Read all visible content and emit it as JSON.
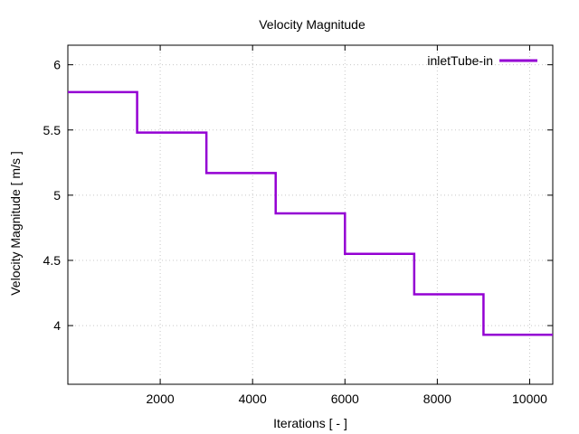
{
  "chart_data": {
    "type": "line",
    "title": "Velocity Magnitude",
    "xlabel": "Iterations [ - ]",
    "ylabel": "Velocity Magnitude [ m/s ]",
    "xlim": [
      0,
      10500
    ],
    "ylim": [
      3.55,
      6.15
    ],
    "xticks": [
      2000,
      4000,
      6000,
      8000,
      10000
    ],
    "xtick_labels": [
      "2000",
      "4000",
      "6000",
      "8000",
      "10000"
    ],
    "yticks": [
      4,
      4.5,
      5,
      5.5,
      6
    ],
    "ytick_labels": [
      "4",
      "4.5",
      "5",
      "5.5",
      "6"
    ],
    "grid": true,
    "legend_position": "top-right",
    "series_color": "#9400d3",
    "series": [
      {
        "name": "inletTube-in",
        "step": true,
        "x": [
          0,
          1500,
          3000,
          4500,
          6000,
          7500,
          9000,
          10500
        ],
        "y": [
          5.79,
          5.48,
          5.17,
          4.86,
          4.55,
          4.24,
          3.93,
          3.93
        ]
      }
    ]
  }
}
